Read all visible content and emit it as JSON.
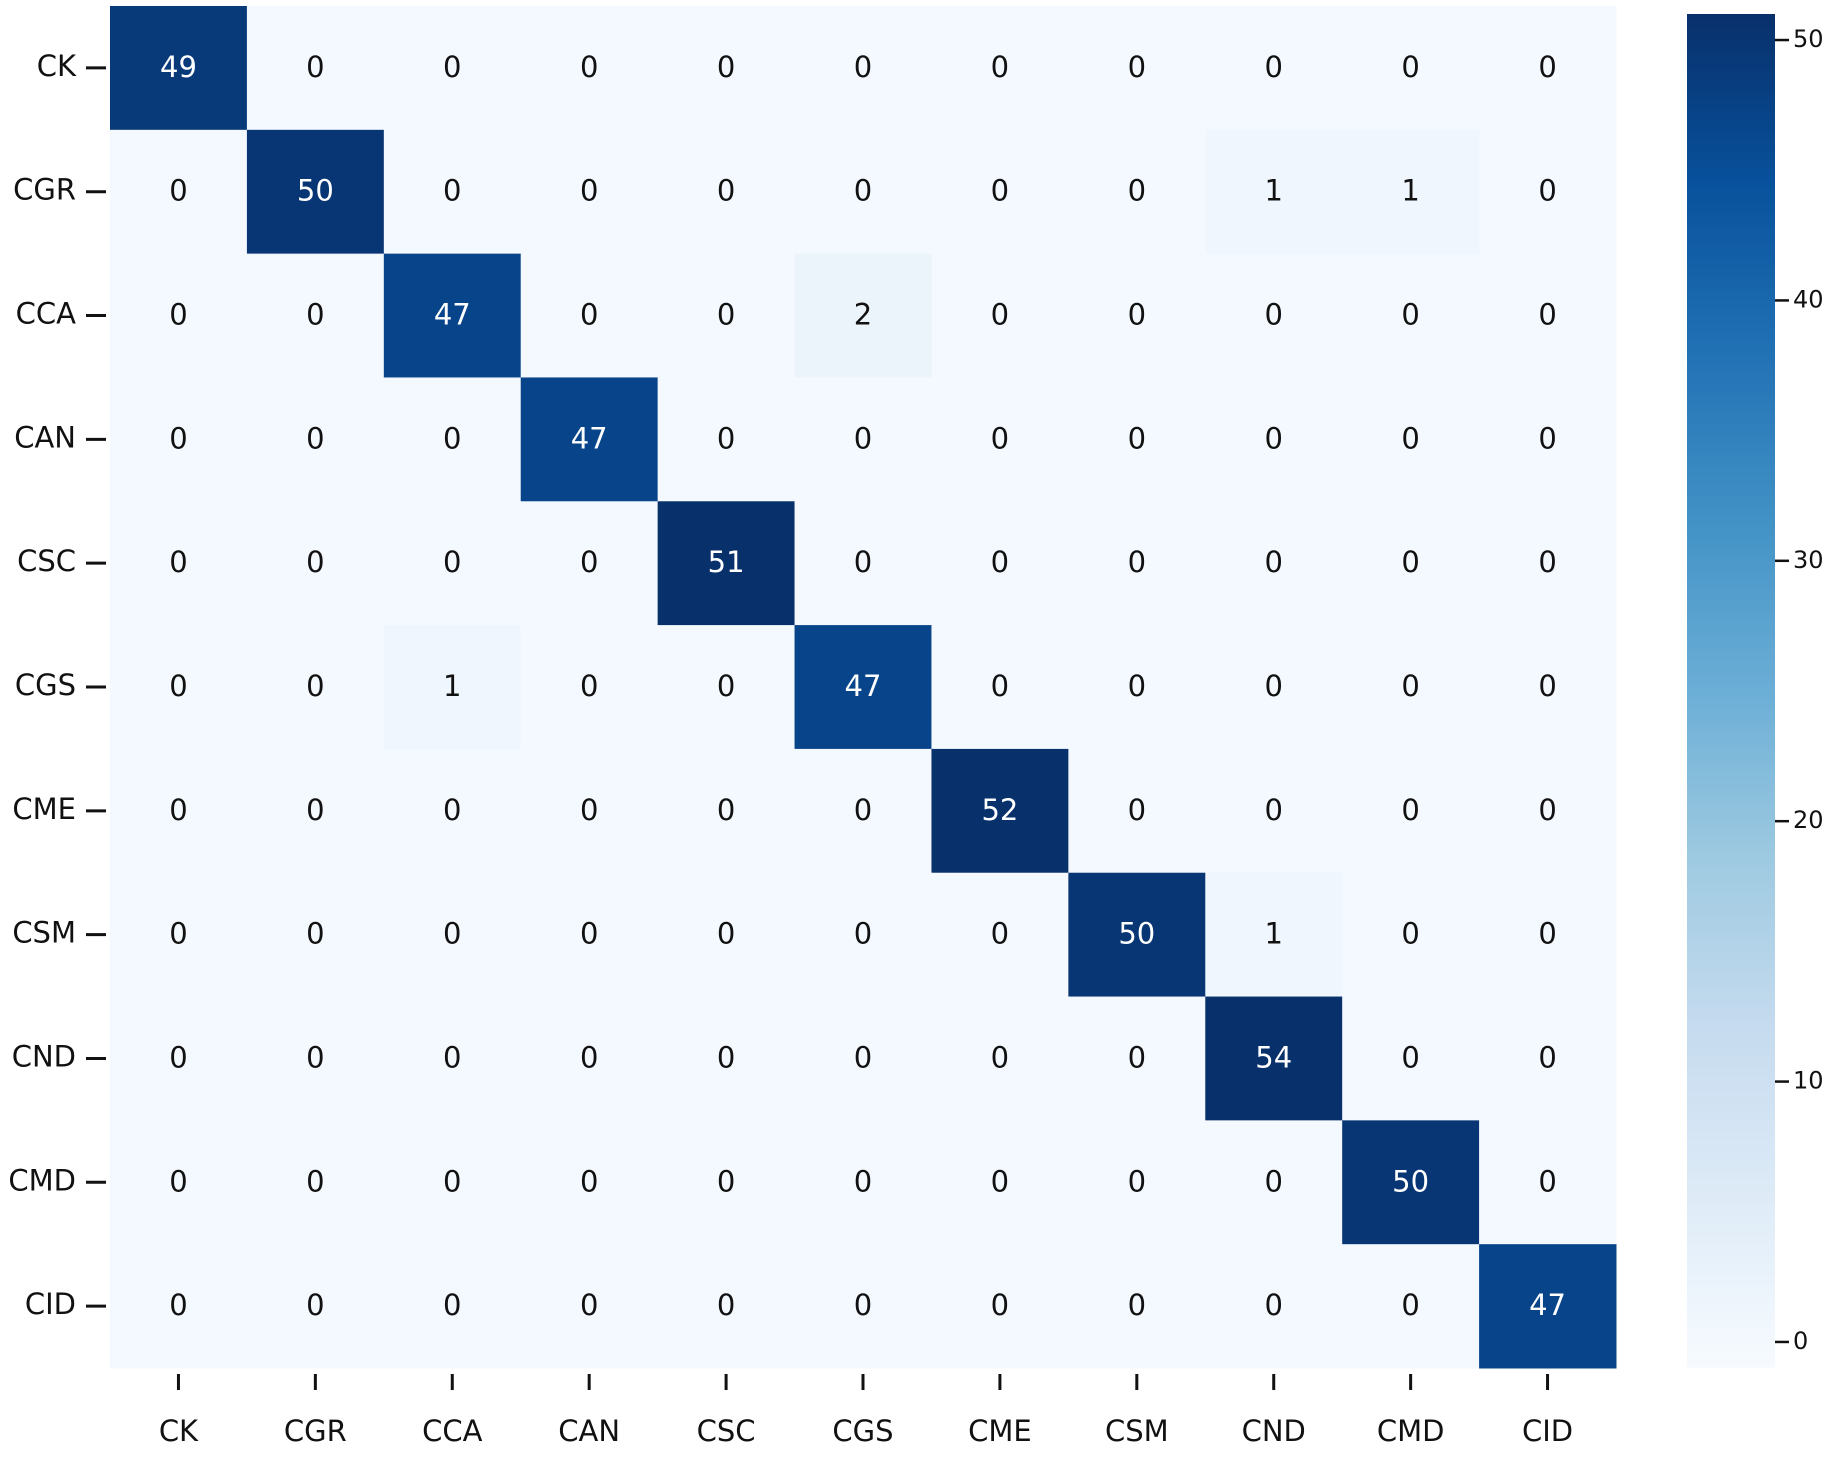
{
  "chart_data": {
    "type": "heatmap",
    "x_categories": [
      "CK",
      "CGR",
      "CCA",
      "CAN",
      "CSC",
      "CGS",
      "CME",
      "CSM",
      "CND",
      "CMD",
      "CID"
    ],
    "y_categories": [
      "CK",
      "CGR",
      "CCA",
      "CAN",
      "CSC",
      "CGS",
      "CME",
      "CSM",
      "CND",
      "CMD",
      "CID"
    ],
    "values": [
      [
        49,
        0,
        0,
        0,
        0,
        0,
        0,
        0,
        0,
        0,
        0
      ],
      [
        0,
        50,
        0,
        0,
        0,
        0,
        0,
        0,
        1,
        1,
        0
      ],
      [
        0,
        0,
        47,
        0,
        0,
        2,
        0,
        0,
        0,
        0,
        0
      ],
      [
        0,
        0,
        0,
        47,
        0,
        0,
        0,
        0,
        0,
        0,
        0
      ],
      [
        0,
        0,
        0,
        0,
        51,
        0,
        0,
        0,
        0,
        0,
        0
      ],
      [
        0,
        0,
        1,
        0,
        0,
        47,
        0,
        0,
        0,
        0,
        0
      ],
      [
        0,
        0,
        0,
        0,
        0,
        0,
        52,
        0,
        0,
        0,
        0
      ],
      [
        0,
        0,
        0,
        0,
        0,
        0,
        0,
        50,
        1,
        0,
        0
      ],
      [
        0,
        0,
        0,
        0,
        0,
        0,
        0,
        0,
        54,
        0,
        0
      ],
      [
        0,
        0,
        0,
        0,
        0,
        0,
        0,
        0,
        0,
        50,
        0
      ],
      [
        0,
        0,
        0,
        0,
        0,
        0,
        0,
        0,
        0,
        0,
        47
      ]
    ],
    "colormap": "Blues",
    "clim": [
      -1,
      51
    ],
    "cticks": [
      0,
      10,
      20,
      30,
      40,
      50
    ]
  }
}
